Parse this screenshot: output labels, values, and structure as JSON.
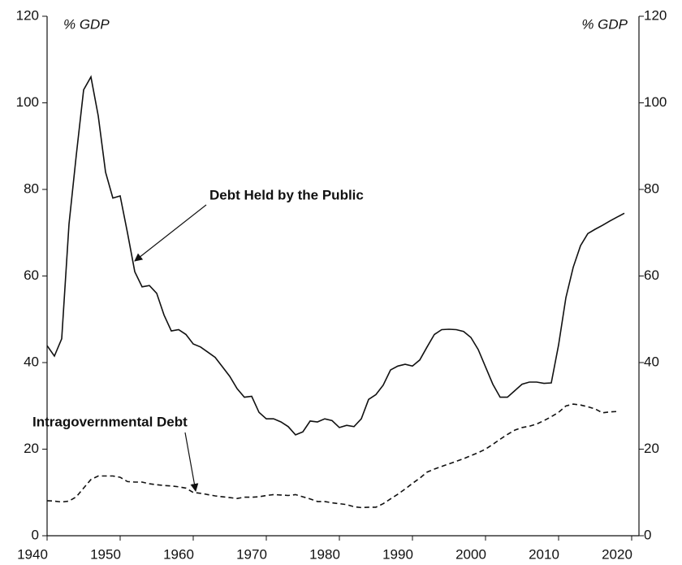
{
  "chart_data": {
    "type": "line",
    "y_label_left": "% GDP",
    "y_label_right": "% GDP",
    "annotations": [
      "Debt Held by the Public",
      "Intragovernmental Debt"
    ],
    "x": [
      1940,
      1941,
      1942,
      1943,
      1944,
      1945,
      1946,
      1947,
      1948,
      1949,
      1950,
      1951,
      1952,
      1953,
      1954,
      1955,
      1956,
      1957,
      1958,
      1959,
      1960,
      1961,
      1962,
      1963,
      1964,
      1965,
      1966,
      1967,
      1968,
      1969,
      1970,
      1971,
      1972,
      1973,
      1974,
      1975,
      1976,
      1977,
      1978,
      1979,
      1980,
      1981,
      1982,
      1983,
      1984,
      1985,
      1986,
      1987,
      1988,
      1989,
      1990,
      1991,
      1992,
      1993,
      1994,
      1995,
      1996,
      1997,
      1998,
      1999,
      2000,
      2001,
      2002,
      2003,
      2004,
      2005,
      2006,
      2007,
      2008,
      2009,
      2010,
      2011,
      2012,
      2013,
      2014,
      2015,
      2016,
      2017,
      2018,
      2019
    ],
    "series": [
      {
        "name": "Debt Held by the Public",
        "color": "#111111",
        "dash": false,
        "values": [
          43.9,
          41.5,
          45.5,
          72,
          88,
          103,
          106,
          97,
          84,
          78,
          78.5,
          70,
          61,
          57.5,
          57.8,
          56,
          51,
          47.3,
          47.6,
          46.5,
          44.3,
          43.6,
          42.4,
          41.2,
          39,
          36.8,
          34,
          32,
          32.2,
          28.5,
          27,
          27,
          26.3,
          25.2,
          23.3,
          24,
          26.5,
          26.3,
          27,
          26.6,
          25,
          25.5,
          25.2,
          27,
          31.5,
          32.6,
          34.8,
          38.3,
          39.2,
          39.6,
          39.2,
          40.6,
          43.6,
          46.5,
          47.6,
          47.7,
          47.6,
          47.2,
          45.8,
          43,
          39,
          35,
          32,
          32,
          33.5,
          35,
          35.5,
          35.5,
          35.2,
          35.3,
          44.1,
          55,
          62,
          67,
          69.8,
          70.8,
          71.7,
          72.7,
          73.6,
          74.5
        ]
      },
      {
        "name": "Intragovernmental Debt",
        "color": "#111111",
        "dash": true,
        "values": [
          8.1,
          8,
          7.8,
          8,
          9,
          11,
          13,
          13.8,
          13.8,
          13.8,
          13.5,
          12.5,
          12.4,
          12.4,
          12,
          11.8,
          11.6,
          11.5,
          11.3,
          11,
          10,
          9.8,
          9.5,
          9.2,
          9,
          8.8,
          8.6,
          8.9,
          8.9,
          9,
          9.3,
          9.5,
          9.4,
          9.3,
          9.5,
          9,
          8.5,
          7.9,
          7.9,
          7.6,
          7.4,
          7.2,
          6.7,
          6.5,
          6.6,
          6.6,
          7.4,
          8.5,
          9.6,
          10.8,
          12.1,
          13.3,
          14.7,
          15.4,
          16,
          16.6,
          17.2,
          17.8,
          18.5,
          19.2,
          20,
          21.1,
          22.3,
          23.4,
          24.4,
          25,
          25.3,
          25.8,
          26.6,
          27.5,
          28.5,
          30,
          30.4,
          30.2,
          29.8,
          29.3,
          28.4,
          28.6,
          28.7,
          null
        ]
      }
    ],
    "xlim": [
      1940,
      2021
    ],
    "xticks": [
      1940,
      1950,
      1960,
      1970,
      1980,
      1990,
      2000,
      2010,
      2020
    ],
    "ylim": [
      0,
      120
    ],
    "yticks": [
      0,
      20,
      40,
      60,
      80,
      100,
      120
    ],
    "y2lim": [
      0,
      120
    ],
    "y2ticks": [
      0,
      20,
      40,
      60,
      80,
      100,
      120
    ],
    "grid": false
  }
}
